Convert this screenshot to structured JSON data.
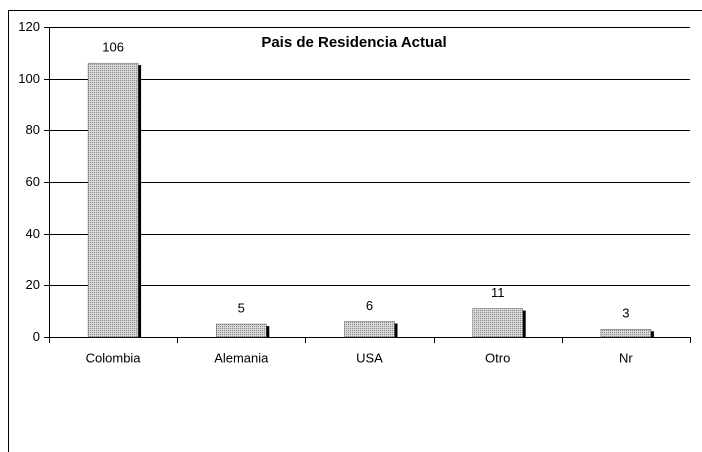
{
  "chart_data": {
    "type": "bar",
    "title": "Pais de Residencia Actual",
    "categories": [
      "Colombia",
      "Alemania",
      "USA",
      "Otro",
      "Nr"
    ],
    "values": [
      106,
      5,
      6,
      11,
      3
    ],
    "color": "#c8c8c8",
    "ylim": [
      0,
      120
    ],
    "yticks": [
      0,
      20,
      40,
      60,
      80,
      100,
      120
    ],
    "grid": true
  }
}
